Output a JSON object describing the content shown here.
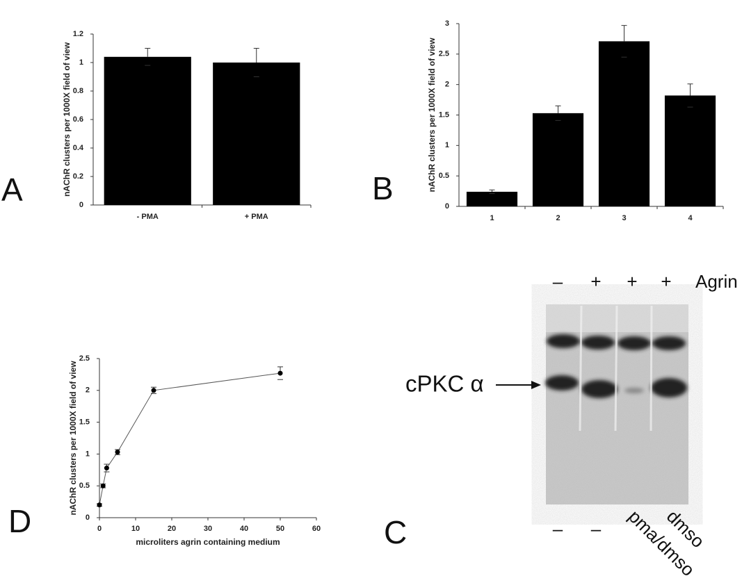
{
  "chart_data": [
    {
      "type": "bar",
      "label": "A",
      "ylabel": "nAChR clusters per 1000X field of view",
      "categories": [
        "- PMA",
        "+ PMA"
      ],
      "values": [
        1.04,
        1.0
      ],
      "errors": [
        0.06,
        0.1
      ],
      "color": "#000000",
      "ylim": [
        0,
        1.2
      ],
      "yticks": [
        0,
        0.2,
        0.4,
        0.6,
        0.8,
        1,
        1.2
      ]
    },
    {
      "type": "bar",
      "label": "B",
      "ylabel": "nAChR clusters per 1000X field of view",
      "categories": [
        "1",
        "2",
        "3",
        "4"
      ],
      "values": [
        0.24,
        1.53,
        2.71,
        1.82
      ],
      "errors": [
        0.03,
        0.12,
        0.26,
        0.19
      ],
      "color": "#000000",
      "ylim": [
        0,
        3
      ],
      "yticks": [
        0,
        0.5,
        1,
        1.5,
        2,
        2.5,
        3
      ]
    },
    {
      "type": "line",
      "label": "D",
      "ylabel": "nAChR clusters per 1000X field of view",
      "xlabel": "microliters agrin containing medium",
      "x": [
        0,
        1,
        2,
        5,
        15,
        50
      ],
      "values": [
        0.2,
        0.5,
        0.78,
        1.03,
        2.0,
        2.27
      ],
      "errors": [
        0.02,
        0.03,
        0.06,
        0.04,
        0.05,
        0.1
      ],
      "color": "#000000",
      "xlim": [
        0,
        60
      ],
      "xticks": [
        0,
        10,
        20,
        30,
        40,
        50,
        60
      ],
      "ylim": [
        0,
        2.5
      ],
      "yticks": [
        0,
        0.5,
        1,
        1.5,
        2,
        2.5
      ]
    }
  ],
  "blot": {
    "label": "C",
    "top_marks": [
      "–",
      "+",
      "+",
      "+"
    ],
    "top_label": "Agrin",
    "band_label": "cPKC α",
    "bottom_marks": [
      "–",
      "–",
      "pma/dmso",
      "dmso"
    ]
  }
}
